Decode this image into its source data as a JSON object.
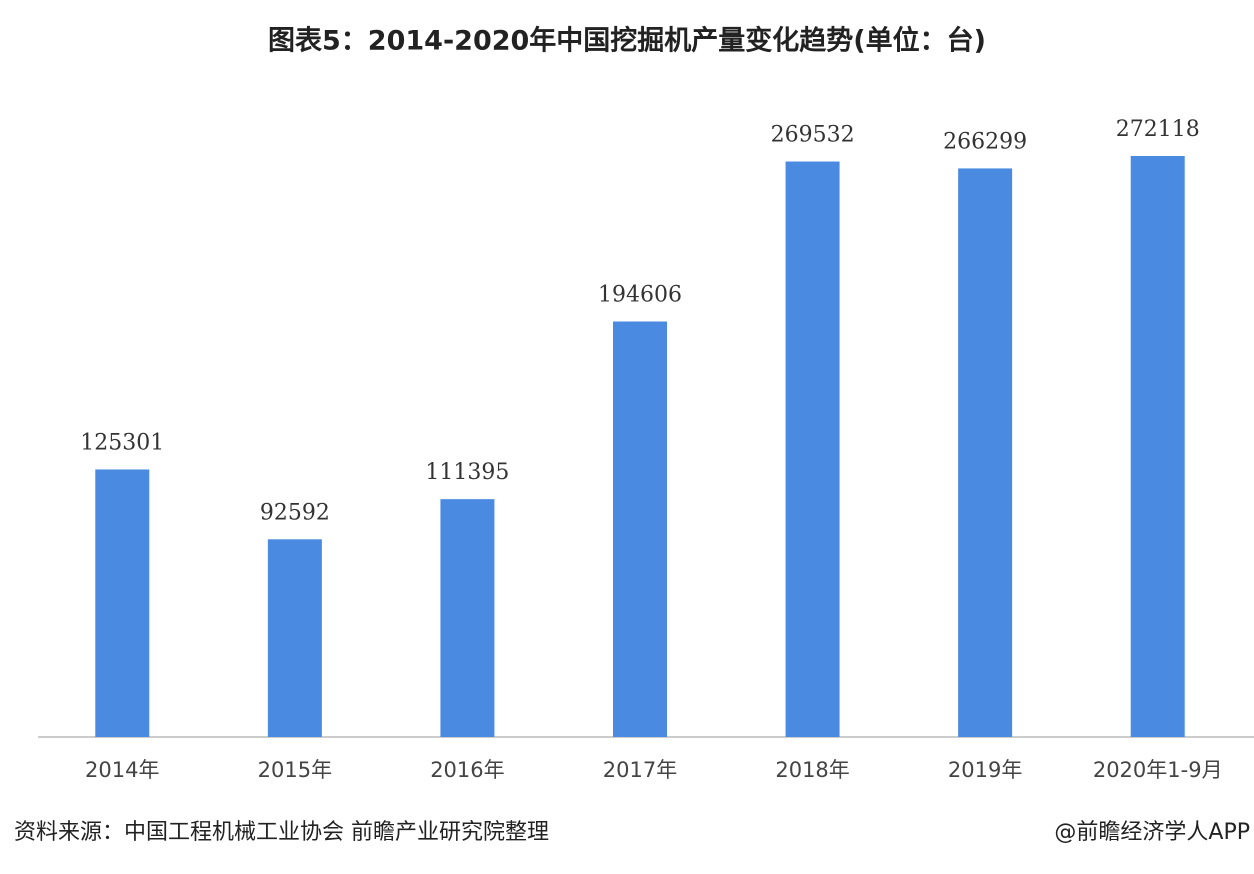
{
  "chart_data": {
    "type": "bar",
    "title": "图表5：2014-2020年中国挖掘机产量变化趋势(单位：台)",
    "categories": [
      "2014年",
      "2015年",
      "2016年",
      "2017年",
      "2018年",
      "2019年",
      "2020年1-9月"
    ],
    "values": [
      125301,
      92592,
      111395,
      194606,
      269532,
      266299,
      272118
    ],
    "color": "#4a8ae0"
  },
  "footer": {
    "source": "资料来源：中国工程机械工业协会 前瞻产业研究院整理",
    "credit": "@前瞻经济学人APP"
  }
}
